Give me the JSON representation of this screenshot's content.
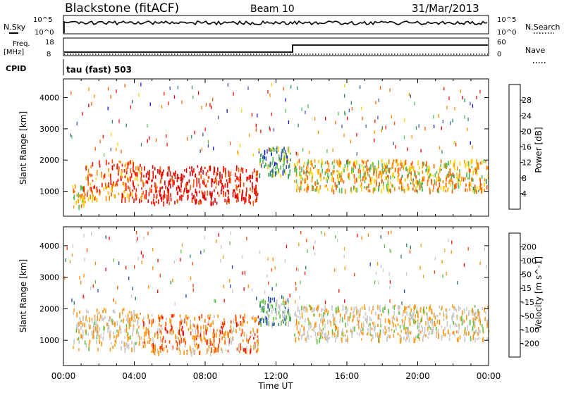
{
  "title": {
    "station": "Blackstone (fitACF)",
    "beam": "Beam 10",
    "date": "31/Mar/2013"
  },
  "status_panels": {
    "nsky_label": "N.Sky",
    "nsearch_label": "N.Search",
    "noise_ticks_left": [
      "10^5",
      "10^0"
    ],
    "noise_ticks_right": [
      "10^5",
      "10^0"
    ],
    "freq_label_1": "Freq.",
    "freq_label_2": "[MHz]",
    "freq_ticks": [
      "18",
      "8"
    ],
    "nave_label": "Nave",
    "nave_ticks": [
      "60",
      "0"
    ],
    "cpid_label": "CPID",
    "cpid_text": "tau (fast) 503"
  },
  "colors": {
    "power_scale": [
      "#1010e0",
      "#4058b0",
      "#2e8b57",
      "#55bb55",
      "#ffd000",
      "#ff9000",
      "#ff5a00",
      "#ff1500",
      "#e00000"
    ],
    "velocity_scale": [
      "#ff0000",
      "#ff4500",
      "#ff8c00",
      "#ffa020",
      "#c8c8c8",
      "#c8c8c8",
      "#60c040",
      "#208060",
      "#2040c0"
    ]
  },
  "chart_data": [
    {
      "type": "heatmap",
      "name": "power",
      "ylabel": "Slant Range [km]",
      "xlabel": "Time UT",
      "x_ticks": [
        "00:00",
        "04:00",
        "08:00",
        "12:00",
        "16:00",
        "20:00",
        "00:00"
      ],
      "x_range_hours": [
        0,
        24
      ],
      "y_ticks": [
        1000,
        2000,
        3000,
        4000
      ],
      "ylim": [
        200,
        4600
      ],
      "colorbar_label": "Power [dB]",
      "colorbar_ticks": [
        "4",
        "8",
        "12",
        "16",
        "20",
        "24",
        "28"
      ],
      "regions": [
        {
          "t": [
            0.5,
            1.2
          ],
          "r": [
            500,
            1200
          ],
          "level": 0.6
        },
        {
          "t": [
            1.2,
            4.5
          ],
          "r": [
            700,
            2000
          ],
          "level": 0.7
        },
        {
          "t": [
            4.5,
            11.0
          ],
          "r": [
            600,
            1800
          ],
          "level": 0.9
        },
        {
          "t": [
            11.0,
            12.8
          ],
          "r": [
            1500,
            2400
          ],
          "level": 0.3
        },
        {
          "t": [
            13.0,
            24.0
          ],
          "r": [
            1000,
            2000
          ],
          "level": 0.55
        }
      ]
    },
    {
      "type": "heatmap",
      "name": "velocity",
      "ylabel": "Slant Range [km]",
      "xlabel": "Time UT",
      "x_ticks": [
        "00:00",
        "04:00",
        "08:00",
        "12:00",
        "16:00",
        "20:00",
        "00:00"
      ],
      "x_range_hours": [
        0,
        24
      ],
      "y_ticks": [
        1000,
        2000,
        3000,
        4000
      ],
      "ylim": [
        200,
        4600
      ],
      "colorbar_label": "Velocity [m s^-1]",
      "colorbar_ticks": [
        "200",
        "100",
        "50",
        "15",
        "-15",
        "-50",
        "-100",
        "-200"
      ],
      "regions": [
        {
          "t": [
            0.5,
            4.5
          ],
          "r": [
            700,
            2000
          ],
          "level": 0.5
        },
        {
          "t": [
            4.5,
            11.0
          ],
          "r": [
            600,
            1800
          ],
          "level": 0.3
        },
        {
          "t": [
            11.0,
            12.8
          ],
          "r": [
            1500,
            2400
          ],
          "level": 0.75
        },
        {
          "t": [
            13.0,
            24.0
          ],
          "r": [
            1000,
            2100
          ],
          "level": 0.5
        }
      ]
    }
  ]
}
